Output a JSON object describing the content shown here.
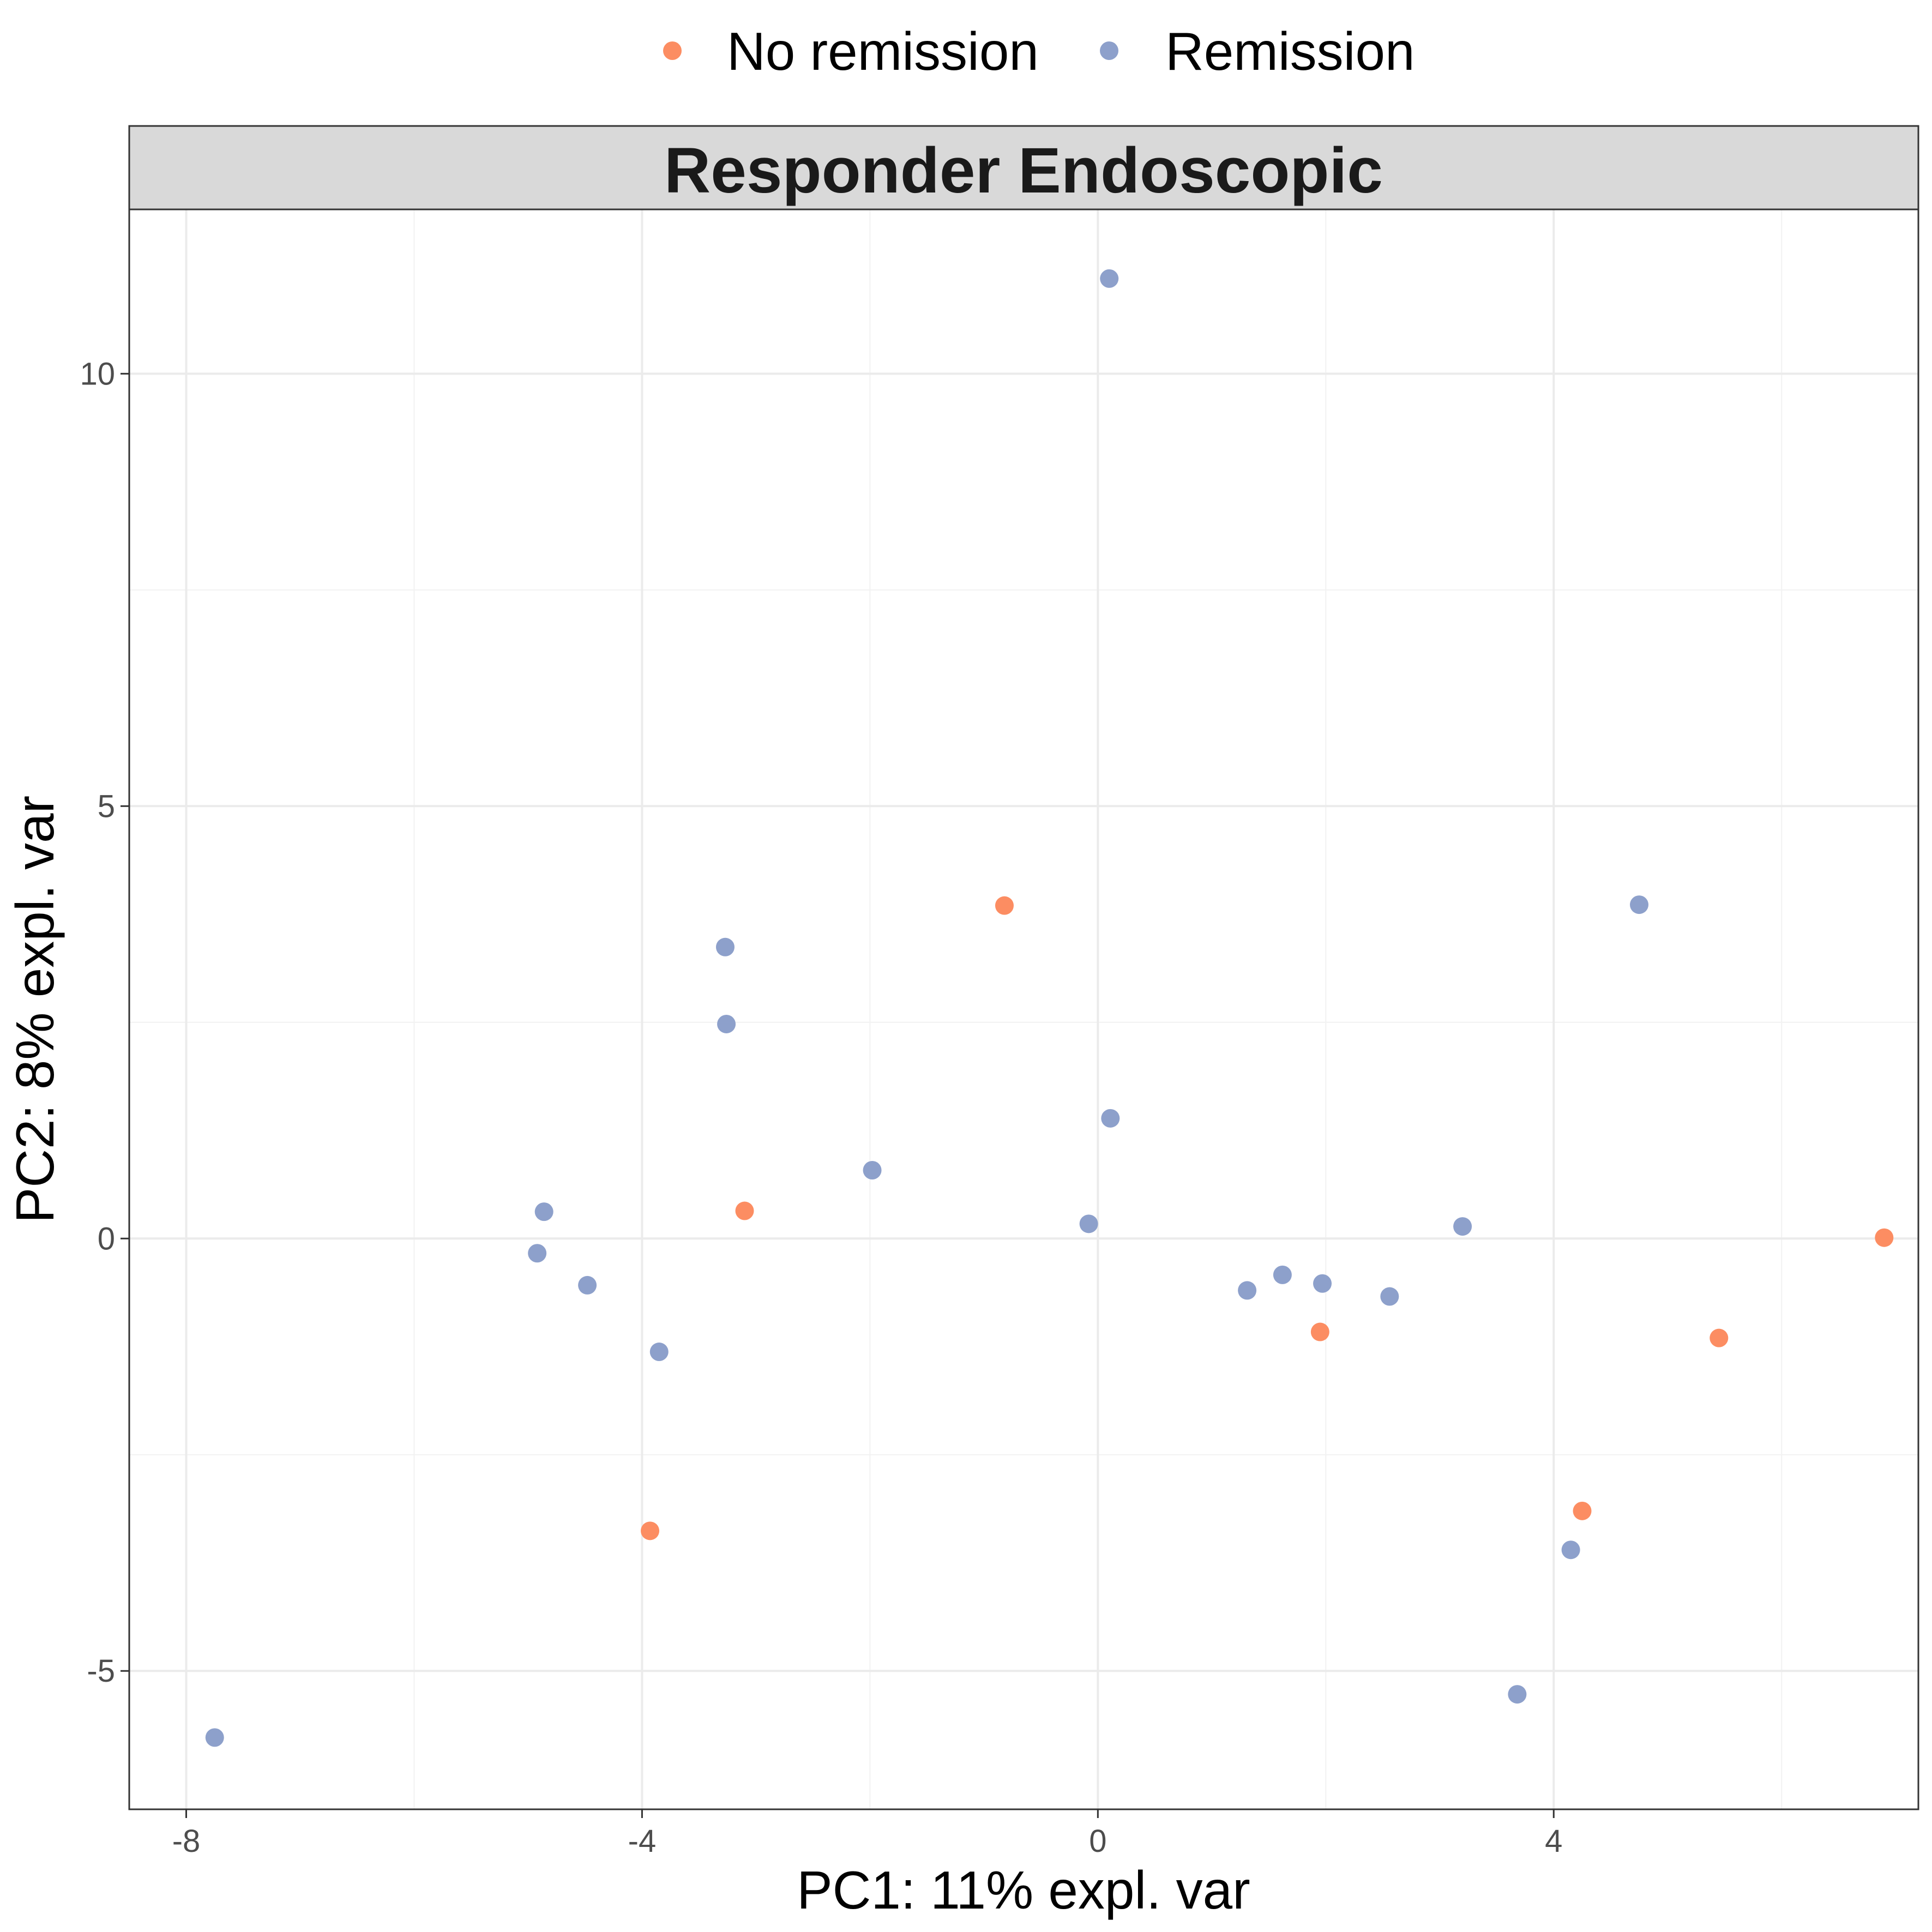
{
  "chart_data": {
    "type": "scatter",
    "title": "Responder Endoscopic",
    "xlabel": "PC1: 11% expl. var",
    "ylabel": "PC2: 8% expl. var",
    "xlim": [
      -8.5,
      7.2
    ],
    "ylim": [
      -6.6,
      11.9
    ],
    "x_ticks": [
      -8,
      -4,
      0,
      4
    ],
    "x_tick_labels": [
      "-8",
      "-4",
      "0",
      "4"
    ],
    "y_ticks": [
      -5,
      0,
      5,
      10
    ],
    "y_tick_labels": [
      "-5",
      "0",
      "5",
      "10"
    ],
    "grid": true,
    "legend_position": "top",
    "series": [
      {
        "name": "No remission",
        "color": "#FC8D62",
        "points": [
          {
            "x": -0.82,
            "y": 3.85
          },
          {
            "x": -3.1,
            "y": 0.32
          },
          {
            "x": -3.93,
            "y": -3.38
          },
          {
            "x": 1.95,
            "y": -1.08
          },
          {
            "x": 5.45,
            "y": -1.15
          },
          {
            "x": 4.25,
            "y": -3.15
          },
          {
            "x": 6.9,
            "y": 0.01
          }
        ]
      },
      {
        "name": "Remission",
        "color": "#8DA0CB",
        "points": [
          {
            "x": 0.1,
            "y": 11.1
          },
          {
            "x": -3.27,
            "y": 3.37
          },
          {
            "x": -3.26,
            "y": 2.48
          },
          {
            "x": -1.98,
            "y": 0.79
          },
          {
            "x": 0.11,
            "y": 1.39
          },
          {
            "x": -0.08,
            "y": 0.17
          },
          {
            "x": -4.86,
            "y": 0.31
          },
          {
            "x": -4.92,
            "y": -0.17
          },
          {
            "x": -4.48,
            "y": -0.54
          },
          {
            "x": -3.85,
            "y": -1.31
          },
          {
            "x": 1.31,
            "y": -0.6
          },
          {
            "x": 1.62,
            "y": -0.42
          },
          {
            "x": 1.97,
            "y": -0.52
          },
          {
            "x": 2.56,
            "y": -0.67
          },
          {
            "x": 3.2,
            "y": 0.14
          },
          {
            "x": 4.75,
            "y": 3.86
          },
          {
            "x": 4.15,
            "y": -3.6
          },
          {
            "x": 3.68,
            "y": -5.27
          },
          {
            "x": -7.75,
            "y": -5.77
          }
        ]
      }
    ]
  }
}
